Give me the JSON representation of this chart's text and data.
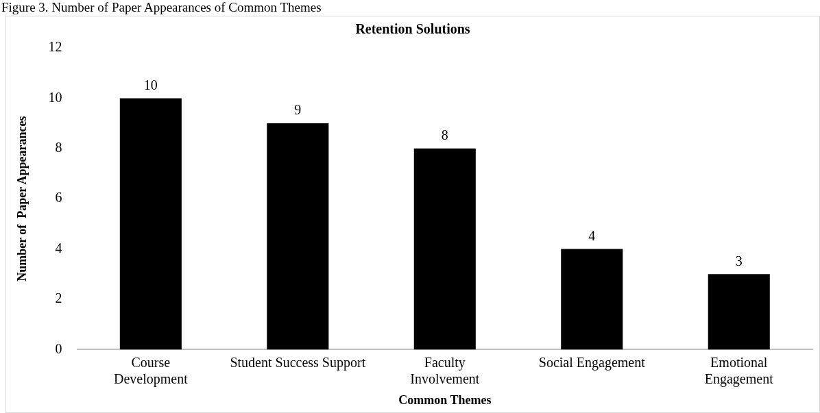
{
  "chart_data": {
    "type": "bar",
    "title": "Retention Solutions",
    "xlabel": "Common Themes",
    "ylabel": "Number of  Paper Appearances",
    "annotations": [
      "Figure 3. Number of Paper Appearances of Common Themes"
    ],
    "categories": [
      "Course Development",
      "Student Success Support",
      "Faculty Involvement",
      "Social Engagement",
      "Emotional Engagement"
    ],
    "values": [
      10,
      9,
      8,
      4,
      3
    ],
    "color": "#000000",
    "ylim": [
      0,
      12
    ],
    "yticks": [
      0,
      2,
      4,
      6,
      8,
      10,
      12
    ],
    "grid": false,
    "legend": false,
    "data_labels": true
  }
}
